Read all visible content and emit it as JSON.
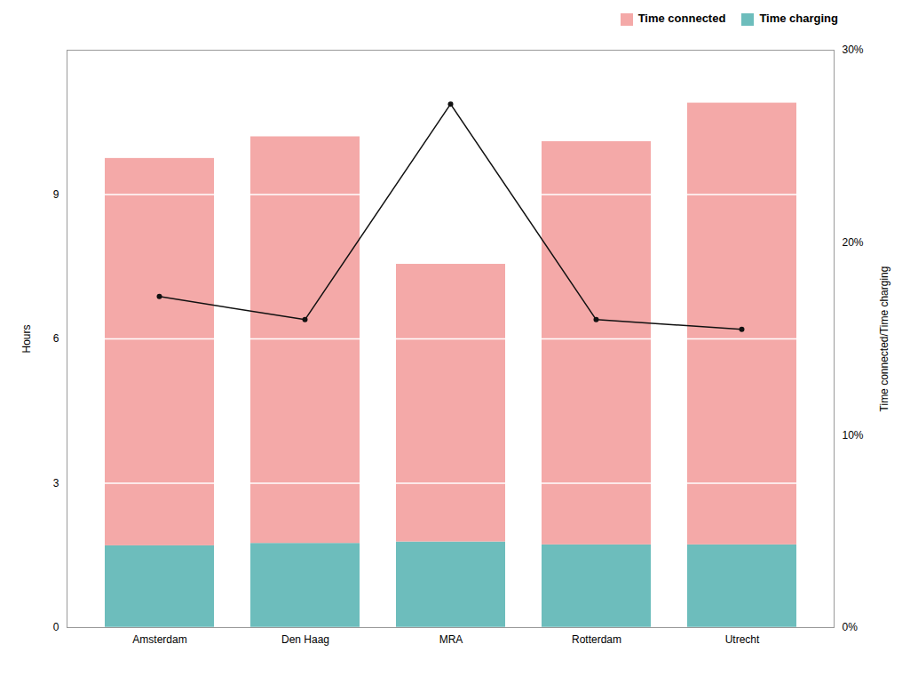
{
  "chart_data": {
    "type": "bar",
    "categories": [
      "Amsterdam",
      "Den Haag",
      "MRA",
      "Rotterdam",
      "Utrecht"
    ],
    "series": [
      {
        "name": "Time charging",
        "color": "#6DBDBC",
        "values": [
          1.7,
          1.75,
          1.78,
          1.72,
          1.72
        ]
      },
      {
        "name": "Time connected",
        "color": "#F4A9A8",
        "values": [
          8.05,
          8.45,
          5.77,
          8.38,
          9.18
        ]
      },
      {
        "type": "line",
        "axis": "y2",
        "color": "#111111",
        "marker": "circle",
        "values": [
          0.172,
          0.16,
          0.272,
          0.16,
          0.155
        ]
      }
    ],
    "stacked": true,
    "ylabel": "Hours",
    "y2label": "Time connected/Time charging",
    "ylim": [
      0,
      12
    ],
    "yticks": [
      0,
      3,
      6,
      9
    ],
    "y2lim": [
      0,
      0.3
    ],
    "y2ticks": [
      {
        "value": 0,
        "label": "0%"
      },
      {
        "value": 0.1,
        "label": "10%"
      },
      {
        "value": 0.2,
        "label": "20%"
      },
      {
        "value": 0.3,
        "label": "30%"
      }
    ],
    "grid": true,
    "legend": "right"
  }
}
